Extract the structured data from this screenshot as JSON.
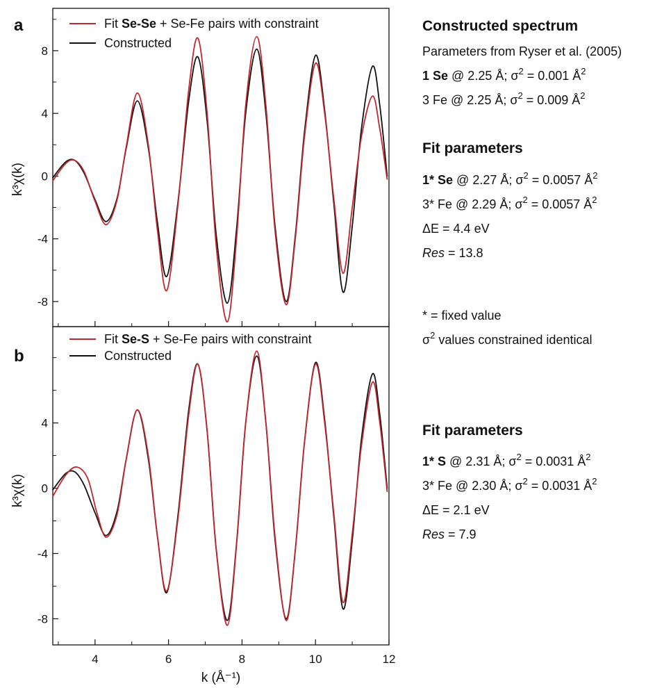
{
  "colors": {
    "fit": "#c0272d",
    "constructed": "#111111"
  },
  "chart_data": [
    {
      "panel": "a",
      "type": "line",
      "xlim": [
        2.85,
        12
      ],
      "ylim": [
        -9.6,
        10.7
      ],
      "yticks": [
        -8,
        -4,
        0,
        4,
        8
      ],
      "xticks": [],
      "ylabel": "k³χ(k)",
      "legend_position": "top-left",
      "legend": [
        {
          "pre": "Fit ",
          "bold": "Se-Se",
          "post": " + Se-Fe pairs with constraint",
          "color": "#c0272d"
        },
        {
          "pre": "Constructed",
          "bold": "",
          "post": "",
          "color": "#111111"
        }
      ],
      "series": [
        {
          "name": "Fit Se-Se + Se-Fe pairs with constraint",
          "color": "#c0272d",
          "x": [
            2.85,
            3.2,
            3.45,
            3.7,
            4.0,
            4.3,
            4.6,
            4.85,
            5.15,
            5.45,
            5.7,
            5.95,
            6.25,
            6.55,
            6.8,
            7.05,
            7.3,
            7.6,
            7.85,
            8.1,
            8.4,
            8.65,
            8.9,
            9.2,
            9.45,
            9.7,
            10.0,
            10.25,
            10.5,
            10.75,
            11.0,
            11.25,
            11.55,
            11.75,
            11.95
          ],
          "y": [
            -0.3,
            0.8,
            1.0,
            0.3,
            -1.6,
            -3.1,
            -1.5,
            1.9,
            5.3,
            2.0,
            -3.5,
            -7.3,
            -2.0,
            5.5,
            8.8,
            4.0,
            -4.5,
            -9.3,
            -4.0,
            4.5,
            8.9,
            4.5,
            -3.5,
            -8.2,
            -4.0,
            2.5,
            7.2,
            4.0,
            -1.5,
            -6.2,
            -2.0,
            2.5,
            5.1,
            3.0,
            -0.2
          ]
        },
        {
          "name": "Constructed",
          "color": "#111111",
          "x": [
            2.85,
            3.2,
            3.45,
            3.7,
            4.0,
            4.3,
            4.6,
            4.85,
            5.15,
            5.45,
            5.7,
            5.95,
            6.25,
            6.55,
            6.8,
            7.05,
            7.3,
            7.6,
            7.85,
            8.1,
            8.4,
            8.65,
            8.9,
            9.2,
            9.45,
            9.7,
            10.0,
            10.25,
            10.5,
            10.75,
            11.0,
            11.25,
            11.55,
            11.75,
            11.95
          ],
          "y": [
            -0.1,
            0.9,
            1.0,
            0.2,
            -1.5,
            -2.9,
            -1.4,
            1.8,
            4.8,
            1.8,
            -3.0,
            -6.4,
            -1.8,
            4.8,
            7.6,
            3.5,
            -3.8,
            -8.1,
            -3.4,
            4.0,
            8.1,
            4.0,
            -3.2,
            -8.0,
            -3.8,
            2.8,
            7.7,
            4.2,
            -1.8,
            -7.4,
            -3.2,
            3.0,
            7.0,
            4.5,
            0.0
          ]
        }
      ]
    },
    {
      "panel": "b",
      "type": "line",
      "xlim": [
        2.85,
        12
      ],
      "ylim": [
        -9.6,
        9.9
      ],
      "yticks": [
        -8,
        -4,
        0,
        4
      ],
      "xticks": [
        4,
        6,
        8,
        10,
        12
      ],
      "ylabel": "k³χ(k)",
      "xlabel": "k (Å⁻¹)",
      "legend_position": "top-left",
      "legend": [
        {
          "pre": "Fit ",
          "bold": "Se-S",
          "post": " + Se-Fe pairs with constraint",
          "color": "#c0272d"
        },
        {
          "pre": "Constructed",
          "bold": "",
          "post": "",
          "color": "#111111"
        }
      ],
      "series": [
        {
          "name": "Fit Se-S + Se-Fe pairs with constraint",
          "color": "#c0272d",
          "x": [
            2.85,
            3.2,
            3.5,
            3.8,
            4.05,
            4.3,
            4.6,
            4.85,
            5.15,
            5.45,
            5.7,
            5.95,
            6.25,
            6.55,
            6.8,
            7.05,
            7.3,
            7.6,
            7.85,
            8.1,
            8.4,
            8.65,
            8.9,
            9.2,
            9.45,
            9.7,
            10.0,
            10.25,
            10.5,
            10.75,
            11.0,
            11.25,
            11.55,
            11.75,
            11.95
          ],
          "y": [
            -0.5,
            0.8,
            1.3,
            0.6,
            -1.5,
            -3.0,
            -1.6,
            1.8,
            4.8,
            2.0,
            -3.0,
            -6.3,
            -2.0,
            4.5,
            7.6,
            3.5,
            -3.8,
            -8.4,
            -3.5,
            4.0,
            8.4,
            4.0,
            -3.0,
            -8.1,
            -3.8,
            2.8,
            7.6,
            4.0,
            -1.6,
            -7.0,
            -2.8,
            2.6,
            6.5,
            4.0,
            -0.2
          ]
        },
        {
          "name": "Constructed",
          "color": "#111111",
          "x": [
            2.85,
            3.2,
            3.45,
            3.7,
            4.0,
            4.3,
            4.6,
            4.85,
            5.15,
            5.45,
            5.7,
            5.95,
            6.25,
            6.55,
            6.8,
            7.05,
            7.3,
            7.6,
            7.85,
            8.1,
            8.4,
            8.65,
            8.9,
            9.2,
            9.45,
            9.7,
            10.0,
            10.25,
            10.5,
            10.75,
            11.0,
            11.25,
            11.55,
            11.75,
            11.95
          ],
          "y": [
            -0.1,
            0.9,
            1.0,
            0.2,
            -1.5,
            -2.9,
            -1.4,
            1.8,
            4.8,
            1.8,
            -3.0,
            -6.4,
            -1.8,
            4.8,
            7.6,
            3.5,
            -3.8,
            -8.1,
            -3.4,
            4.0,
            8.1,
            4.0,
            -3.2,
            -8.0,
            -3.8,
            2.8,
            7.7,
            4.2,
            -1.8,
            -7.4,
            -3.2,
            3.0,
            7.0,
            4.5,
            0.0
          ]
        }
      ]
    }
  ],
  "annotations": {
    "constructed": {
      "title": "Constructed spectrum",
      "source": "Parameters from Ryser et al. (2005)",
      "line1": {
        "bold": "1 Se",
        "text": " @ 2.25 Å; σ",
        "sup": "2",
        "text2": " = 0.001 Å",
        "sup2": "2"
      },
      "line2": {
        "bold": "",
        "text": "3 Fe @ 2.25 Å; σ",
        "sup": "2",
        "text2": " = 0.009 Å",
        "sup2": "2"
      }
    },
    "fit_a": {
      "title": "Fit parameters",
      "line1": {
        "bold": "1* Se",
        "text": " @ 2.27 Å; σ",
        "sup": "2",
        "text2": " = 0.0057 Å",
        "sup2": "2"
      },
      "line2": {
        "bold": "",
        "text": "3* Fe @ 2.29 Å; σ",
        "sup": "2",
        "text2": " = 0.0057 Å",
        "sup2": "2"
      },
      "de": "ΔE = 4.4 eV",
      "res_label": "Res",
      "res_value": " = 13.8"
    },
    "notes": {
      "fixed": "* = fixed value",
      "constraint_sym": "σ",
      "constraint_sup": "2",
      "constraint_text": " values constrained identical"
    },
    "fit_b": {
      "title": "Fit parameters",
      "line1": {
        "bold": "1* S",
        "text": " @ 2.31 Å; σ",
        "sup": "2",
        "text2": " = 0.0031 Å",
        "sup2": "2"
      },
      "line2": {
        "bold": "",
        "text": "3* Fe @ 2.30 Å; σ",
        "sup": "2",
        "text2": " = 0.0031 Å",
        "sup2": "2"
      },
      "de": "ΔE = 2.1 eV",
      "res_label": "Res",
      "res_value": " = 7.9"
    }
  }
}
